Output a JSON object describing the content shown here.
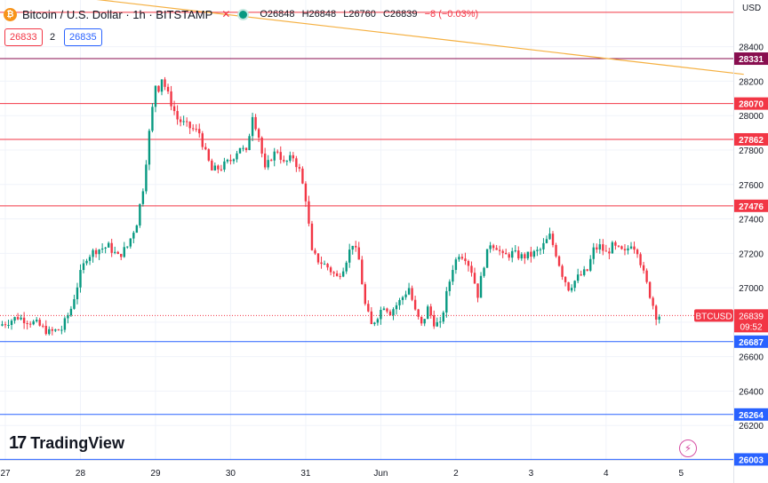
{
  "header": {
    "title": "Bitcoin / U.S. Dollar · 1h · BITSTAMP",
    "ohlc_open": "O26848",
    "ohlc_high": "H26848",
    "ohlc_low": "L26760",
    "ohlc_close": "C26839",
    "change": "−8 (−0.03%)",
    "sell_price": "26833",
    "spread": "2",
    "buy_price": "26835",
    "currency": "USD"
  },
  "branding": {
    "logo_text": "TradingView"
  },
  "chart_data": {
    "type": "candlestick",
    "symbol_label": "BTCUSD",
    "last_price": 26839,
    "countdown": "09:52",
    "ylim": [
      26000,
      28620
    ],
    "y_ticks": [
      26200,
      26400,
      26600,
      26800,
      27000,
      27200,
      27400,
      27600,
      27800,
      28000,
      28200,
      28400
    ],
    "x_ticks": [
      {
        "label": "27",
        "t": 0
      },
      {
        "label": "28",
        "t": 24
      },
      {
        "label": "29",
        "t": 48
      },
      {
        "label": "30",
        "t": 72
      },
      {
        "label": "31",
        "t": 96
      },
      {
        "label": "Jun",
        "t": 120
      },
      {
        "label": "2",
        "t": 144
      },
      {
        "label": "3",
        "t": 168
      },
      {
        "label": "4",
        "t": 192
      },
      {
        "label": "5",
        "t": 216
      }
    ],
    "horizontal_levels": [
      {
        "value": 28600,
        "label": "",
        "color": "#f23645"
      },
      {
        "value": 28331,
        "label": "28331",
        "color": "#880e4f"
      },
      {
        "value": 28070,
        "label": "28070",
        "color": "#f23645"
      },
      {
        "value": 27862,
        "label": "27862",
        "color": "#f23645"
      },
      {
        "value": 27476,
        "label": "27476",
        "color": "#f23645"
      },
      {
        "value": 26687,
        "label": "26687",
        "color": "#2962ff"
      },
      {
        "value": 26264,
        "label": "26264",
        "color": "#2962ff"
      },
      {
        "value": 26003,
        "label": "26003",
        "color": "#2962ff"
      }
    ],
    "trendline": {
      "t0": -2,
      "v0": 28740,
      "t1": 236,
      "v1": 28240,
      "color": "#f5b041"
    },
    "close_path": [
      [
        -2,
        26780
      ],
      [
        4,
        26830
      ],
      [
        10,
        26790
      ],
      [
        14,
        26740
      ],
      [
        18,
        26760
      ],
      [
        21,
        26880
      ],
      [
        24,
        27080
      ],
      [
        26,
        27180
      ],
      [
        29,
        27220
      ],
      [
        33,
        27240
      ],
      [
        36,
        27180
      ],
      [
        39,
        27240
      ],
      [
        42,
        27380
      ],
      [
        44,
        27580
      ],
      [
        46,
        27900
      ],
      [
        48,
        28180
      ],
      [
        49,
        28160
      ],
      [
        50,
        28220
      ],
      [
        52,
        28120
      ],
      [
        55,
        27980
      ],
      [
        58,
        27940
      ],
      [
        62,
        27900
      ],
      [
        64,
        27780
      ],
      [
        66,
        27680
      ],
      [
        69,
        27700
      ],
      [
        72,
        27740
      ],
      [
        75,
        27820
      ],
      [
        77,
        27780
      ],
      [
        79,
        28010
      ],
      [
        81,
        27880
      ],
      [
        83,
        27680
      ],
      [
        85,
        27760
      ],
      [
        87,
        27800
      ],
      [
        89,
        27720
      ],
      [
        92,
        27760
      ],
      [
        94,
        27680
      ],
      [
        96,
        27520
      ],
      [
        98,
        27200
      ],
      [
        100,
        27160
      ],
      [
        103,
        27120
      ],
      [
        106,
        27060
      ],
      [
        108,
        27120
      ],
      [
        111,
        27260
      ],
      [
        113,
        27160
      ],
      [
        115,
        26900
      ],
      [
        117,
        26780
      ],
      [
        119,
        26840
      ],
      [
        121,
        26900
      ],
      [
        123,
        26860
      ],
      [
        126,
        26920
      ],
      [
        129,
        27000
      ],
      [
        131,
        26860
      ],
      [
        133,
        26780
      ],
      [
        135,
        26880
      ],
      [
        137,
        26800
      ],
      [
        139,
        26780
      ],
      [
        141,
        26960
      ],
      [
        143,
        27120
      ],
      [
        145,
        27200
      ],
      [
        147,
        27180
      ],
      [
        149,
        27100
      ],
      [
        151,
        26960
      ],
      [
        153,
        27140
      ],
      [
        155,
        27260
      ],
      [
        157,
        27240
      ],
      [
        159,
        27180
      ],
      [
        162,
        27200
      ],
      [
        165,
        27180
      ],
      [
        168,
        27190
      ],
      [
        171,
        27220
      ],
      [
        174,
        27300
      ],
      [
        176,
        27200
      ],
      [
        178,
        27080
      ],
      [
        180,
        27000
      ],
      [
        183,
        27060
      ],
      [
        186,
        27100
      ],
      [
        188,
        27220
      ],
      [
        190,
        27240
      ],
      [
        192,
        27200
      ],
      [
        194,
        27240
      ],
      [
        196,
        27220
      ],
      [
        198,
        27200
      ],
      [
        200,
        27260
      ],
      [
        202,
        27220
      ],
      [
        204,
        27080
      ],
      [
        206,
        26960
      ],
      [
        208,
        26840
      ],
      [
        209,
        26839
      ]
    ]
  }
}
